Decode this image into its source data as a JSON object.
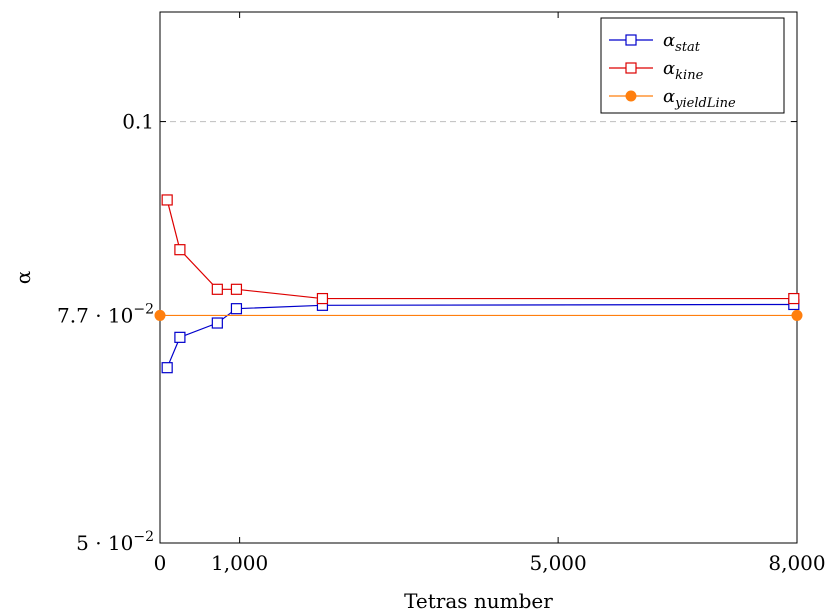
{
  "chart_data": {
    "type": "line",
    "xlabel": "Tetras number",
    "ylabel": "α",
    "xlim": [
      0,
      8000
    ],
    "ylim": [
      0.05,
      0.113
    ],
    "x_ticks": [
      {
        "value": 0,
        "label": "0"
      },
      {
        "value": 1000,
        "label": "1,000"
      },
      {
        "value": 5000,
        "label": "5,000"
      },
      {
        "value": 8000,
        "label": "8,000"
      }
    ],
    "y_ticks": [
      {
        "value": 0.05,
        "label_base": "5 · 10",
        "label_exp": "−2"
      },
      {
        "value": 0.077,
        "label_base": "7.7 · 10",
        "label_exp": "−2"
      },
      {
        "value": 0.1,
        "label_base": "0.1",
        "label_exp": ""
      }
    ],
    "reference_line": {
      "y": 0.1,
      "style": "dashed",
      "color": "#bfbfbf"
    },
    "series": [
      {
        "name_base": "α",
        "name_sub": "stat",
        "color": "#0000cc",
        "marker": "square-open",
        "x": [
          90,
          250,
          720,
          960,
          2040,
          7960
        ],
        "y": [
          0.0708,
          0.0744,
          0.0761,
          0.0778,
          0.0782,
          0.0783
        ]
      },
      {
        "name_base": "α",
        "name_sub": "kine",
        "color": "#dd0000",
        "marker": "square-open",
        "x": [
          90,
          250,
          720,
          960,
          2040,
          7960
        ],
        "y": [
          0.0907,
          0.0848,
          0.0801,
          0.0801,
          0.079,
          0.079
        ]
      },
      {
        "name_base": "α",
        "name_sub": "yieldLine",
        "color": "#ff7f0e",
        "marker": "circle-filled",
        "x": [
          0,
          8000
        ],
        "y": [
          0.077,
          0.077
        ]
      }
    ],
    "legend": {
      "position": "top-right"
    },
    "grid": false
  }
}
